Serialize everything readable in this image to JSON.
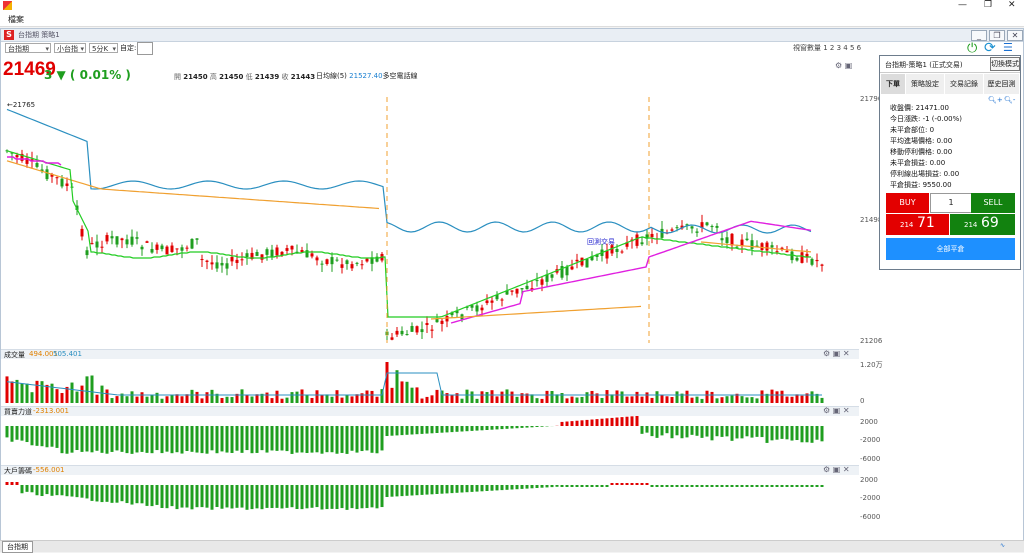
{
  "app": {
    "menu_label": "檔案",
    "window_title": "台指期 策略1"
  },
  "toolbar": {
    "instrument": "台指期",
    "contract": "小台指",
    "interval": "5分K",
    "custom_label": "自定:",
    "view_count_label": "視窗數量 1 2 3 4 5 6"
  },
  "quote": {
    "price": "21469",
    "change": "3 ▼ ( 0.01% )",
    "open_label": "開",
    "open": "21450",
    "high_label": "高",
    "high": "21450",
    "low_label": "低",
    "low": "21439",
    "close_label": "收",
    "close": "21443",
    "ma_label": "日均線(5)",
    "ma_value": "21527.40",
    "signal_label": "多空電話線"
  },
  "price_axis": {
    "top": "21790",
    "mid": "21498",
    "bottom": "21206",
    "first_bar_label": "←21765"
  },
  "chart_note": "回測交易",
  "volume_panel": {
    "title": "成交量",
    "v1": "494.001",
    "v2": "505.401",
    "axis_top": "1.20万",
    "axis_bottom": "0"
  },
  "buysell_panel": {
    "title": "買賣力道",
    "value": "-2313.001",
    "ticks": [
      "2000",
      "-2000",
      "-6000"
    ]
  },
  "big_panel": {
    "title": "大戶籌碼",
    "value": "-556.001",
    "ticks": [
      "2000",
      "-2000",
      "-6000"
    ]
  },
  "trade_panel": {
    "title": "台指期-策略1 (正式交易)",
    "mode_button": "切換模式",
    "tabs": [
      "下單",
      "策略設定",
      "交易記錄",
      "歷史回測"
    ],
    "info": [
      "收盤價: 21471.00",
      "今日漲跌: -1 (-0.00%)",
      "未平倉部位: 0",
      "平均進場價格: 0.00",
      "移動停利價格: 0.00",
      "未平倉損益: 0.00",
      "停利線出場損益: 0.00",
      "平倉損益: 9550.00"
    ],
    "buy_label": "BUY",
    "sell_label": "SELL",
    "qty": "1",
    "bid_prefix": "214",
    "bid_suffix": "71",
    "ask_prefix": "214",
    "ask_suffix": "69",
    "close_all": "全部平倉"
  },
  "status": {
    "tab": "台指期"
  },
  "colors": {
    "up": "#e00000",
    "down": "#1f9e1f",
    "accent": "#1e90ff"
  }
}
